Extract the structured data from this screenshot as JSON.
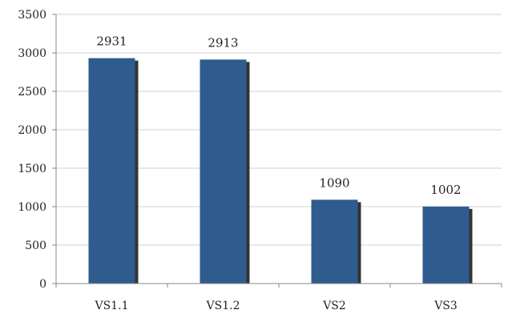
{
  "chart_data": {
    "type": "bar",
    "title": "",
    "xlabel": "",
    "ylabel": "",
    "categories": [
      "VS1.1",
      "VS1.2",
      "VS2",
      "VS3"
    ],
    "values": [
      2931,
      2913,
      1090,
      1002
    ],
    "data_labels": [
      "2931",
      "2913",
      "1090",
      "1002"
    ],
    "ylim": [
      0,
      3500
    ],
    "yticks": [
      0,
      500,
      1000,
      1500,
      2000,
      2500,
      3000,
      3500
    ],
    "grid": "horizontal",
    "legend": "none",
    "colors": {
      "bar": "#2E5C8E",
      "bar_shadow": "#111111"
    }
  }
}
